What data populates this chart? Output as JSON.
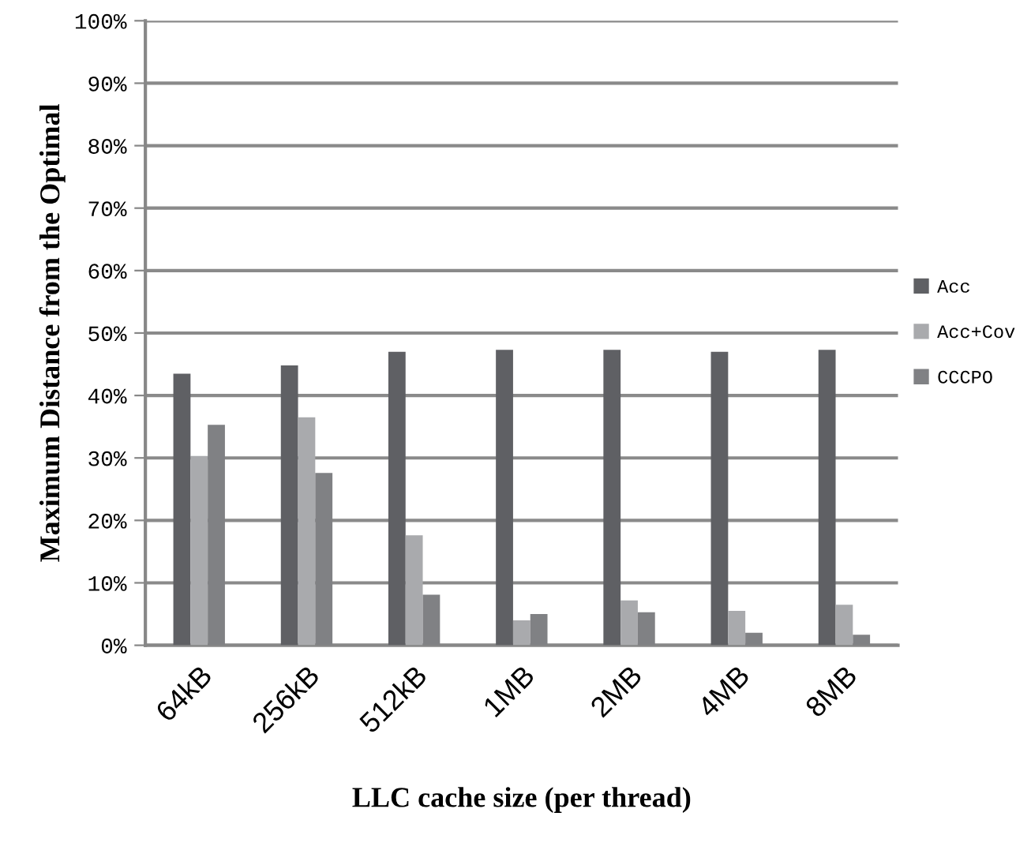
{
  "chart_data": {
    "type": "bar",
    "xlabel": "LLC cache size (per thread)",
    "ylabel": "Maximum Distance from the Optimal",
    "categories": [
      "64kB",
      "256kB",
      "512kB",
      "1MB",
      "2MB",
      "4MB",
      "8MB"
    ],
    "series": [
      {
        "name": "Acc",
        "color": "#5f6064",
        "values": [
          43.5,
          44.8,
          47,
          47.3,
          47.3,
          47,
          47.3
        ]
      },
      {
        "name": "Acc+Cov",
        "color": "#a9aaad",
        "values": [
          30.3,
          36.5,
          17.6,
          4,
          7.2,
          5.5,
          6.5
        ]
      },
      {
        "name": "CCCPO",
        "color": "#808184",
        "values": [
          35.3,
          27.6,
          8.1,
          5,
          5.3,
          2,
          1.7
        ]
      }
    ],
    "ylim": [
      0,
      100
    ],
    "yticks": [
      {
        "value": 0,
        "label": "0%"
      },
      {
        "value": 10,
        "label": "10%"
      },
      {
        "value": 20,
        "label": "20%"
      },
      {
        "value": 30,
        "label": "30%"
      },
      {
        "value": 40,
        "label": "40%"
      },
      {
        "value": 50,
        "label": "50%"
      },
      {
        "value": 60,
        "label": "60%"
      },
      {
        "value": 70,
        "label": "70%"
      },
      {
        "value": 80,
        "label": "80%"
      },
      {
        "value": 90,
        "label": "90%"
      },
      {
        "value": 100,
        "label": "100%"
      }
    ],
    "grid": "y",
    "legend": "right"
  }
}
